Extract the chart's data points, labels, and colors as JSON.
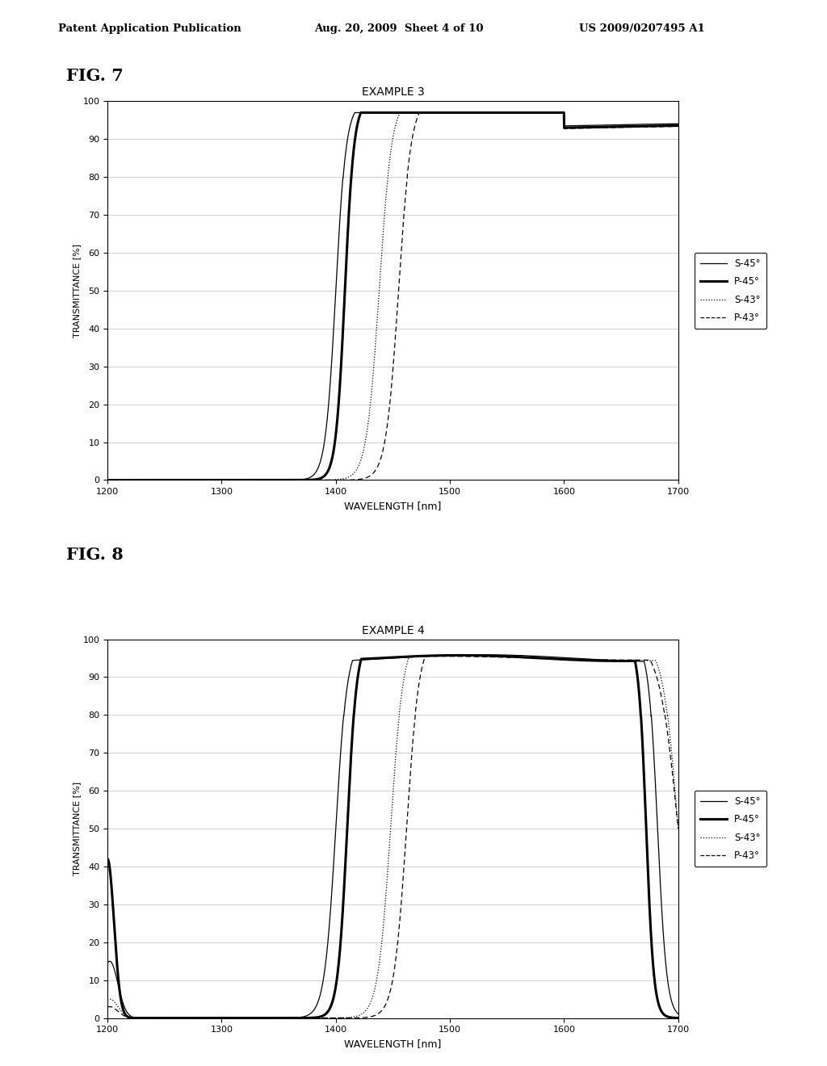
{
  "header_left": "Patent Application Publication",
  "header_mid": "Aug. 20, 2009  Sheet 4 of 10",
  "header_right": "US 2009/0207495 A1",
  "fig7_label": "FIG. 7",
  "fig8_label": "FIG. 8",
  "fig7_title": "EXAMPLE 3",
  "fig8_title": "EXAMPLE 4",
  "xlabel": "WAVELENGTH [nm]",
  "ylabel": "TRANSMITTANCE [%]",
  "xlim": [
    1200,
    1700
  ],
  "ylim": [
    0,
    100
  ],
  "xticks": [
    1200,
    1300,
    1400,
    1500,
    1600,
    1700
  ],
  "yticks": [
    0,
    10,
    20,
    30,
    40,
    50,
    60,
    70,
    80,
    90,
    100
  ],
  "background_color": "#ffffff",
  "grid_color": "#bbbbbb",
  "fig7_curves": {
    "s45_x0": 1400,
    "s45_k": 0.22,
    "p45_x0": 1408,
    "p45_k": 0.25,
    "s43_x0": 1438,
    "s43_k": 0.18,
    "p43_x0": 1455,
    "p43_k": 0.18
  },
  "fig8_curves": {
    "s45_rise": 1400,
    "s45_fall": 1682,
    "s45_k_r": 0.2,
    "s45_k_f": 0.25,
    "p45_rise": 1410,
    "p45_fall": 1672,
    "p45_k_r": 0.24,
    "p45_k_f": 0.3,
    "s43_rise": 1448,
    "s43_fall": 1700,
    "s43_k_r": 0.18,
    "s43_k_f": 0.15,
    "p43_rise": 1462,
    "p43_fall": 1700,
    "p43_k_r": 0.18,
    "p43_k_f": 0.12
  }
}
